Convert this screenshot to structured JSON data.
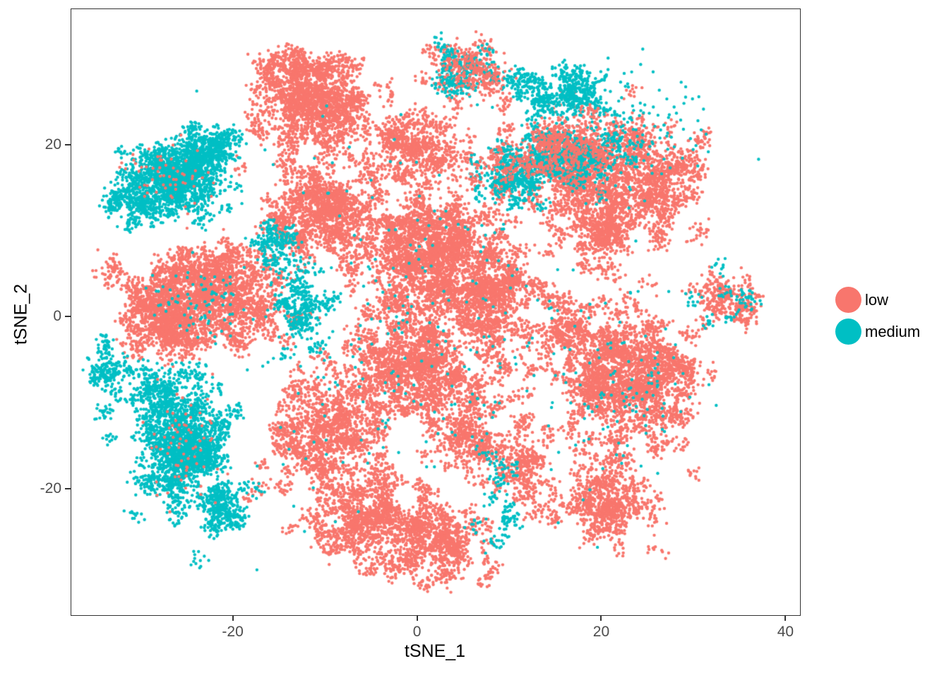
{
  "figure": {
    "background": "#ffffff"
  },
  "axes": {
    "x_title": "tSNE_1",
    "y_title": "tSNE_2"
  },
  "legend": {
    "position": "right",
    "items": [
      {
        "label": "low",
        "group": "low"
      },
      {
        "label": "medium",
        "group": "medium"
      }
    ]
  },
  "chart_data": {
    "type": "scatter",
    "title": "",
    "xlabel": "tSNE_1",
    "ylabel": "tSNE_2",
    "xlim": [
      -37.6,
      41.5
    ],
    "ylim": [
      -34.6,
      35.8
    ],
    "x_ticks": [
      -20,
      0,
      20,
      40
    ],
    "y_ticks": [
      -20,
      0,
      20
    ],
    "grid": false,
    "legend_position": "right",
    "groups": {
      "low": "#F8766D",
      "medium": "#00BFC4"
    },
    "point_radius_px": 2.2,
    "seed": 42,
    "blobs": [
      {
        "g": "low",
        "x": -25.5,
        "y": 2.5,
        "sx": 3.0,
        "sy": 2.2,
        "n": 1700
      },
      {
        "g": "low",
        "x": -27.5,
        "y": -1.5,
        "sx": 2.2,
        "sy": 1.6,
        "n": 700
      },
      {
        "g": "low",
        "x": -18.5,
        "y": 1.0,
        "sx": 2.4,
        "sy": 2.4,
        "n": 900
      },
      {
        "g": "low",
        "x": -22.0,
        "y": 6.0,
        "sx": 2.2,
        "sy": 1.4,
        "n": 500
      },
      {
        "g": "low",
        "x": -33.5,
        "y": 6.2,
        "sx": 1.0,
        "sy": 0.8,
        "n": 70
      },
      {
        "g": "low",
        "x": -11.0,
        "y": 24.5,
        "sx": 3.1,
        "sy": 2.8,
        "n": 2100
      },
      {
        "g": "low",
        "x": -14.5,
        "y": 29.0,
        "sx": 1.8,
        "sy": 1.2,
        "n": 400
      },
      {
        "g": "low",
        "x": -10.5,
        "y": 12.5,
        "sx": 2.9,
        "sy": 2.6,
        "n": 1700
      },
      {
        "g": "low",
        "x": 0.5,
        "y": 19.5,
        "sx": 2.4,
        "sy": 2.2,
        "n": 900
      },
      {
        "g": "low",
        "x": 1.5,
        "y": 6.5,
        "sx": 4.0,
        "sy": 4.0,
        "n": 3400
      },
      {
        "g": "low",
        "x": 8.5,
        "y": 2.0,
        "sx": 3.0,
        "sy": 3.2,
        "n": 1500
      },
      {
        "g": "low",
        "x": -1.5,
        "y": -6.5,
        "sx": 3.8,
        "sy": 2.8,
        "n": 2100
      },
      {
        "g": "low",
        "x": -10.0,
        "y": -14.0,
        "sx": 3.0,
        "sy": 3.0,
        "n": 1700
      },
      {
        "g": "low",
        "x": -4.5,
        "y": -23.5,
        "sx": 3.2,
        "sy": 2.5,
        "n": 1500
      },
      {
        "g": "low",
        "x": 2.5,
        "y": -26.5,
        "sx": 2.4,
        "sy": 2.2,
        "n": 1000
      },
      {
        "g": "low",
        "x": 6.0,
        "y": -13.5,
        "sx": 2.4,
        "sy": 2.6,
        "n": 800
      },
      {
        "g": "low",
        "x": 12.0,
        "y": -17.0,
        "sx": 1.6,
        "sy": 2.2,
        "n": 420
      },
      {
        "g": "low",
        "x": 22.0,
        "y": -7.0,
        "sx": 3.2,
        "sy": 4.2,
        "n": 2300
      },
      {
        "g": "low",
        "x": 27.0,
        "y": -7.0,
        "sx": 1.8,
        "sy": 2.8,
        "n": 700
      },
      {
        "g": "low",
        "x": 20.5,
        "y": -21.5,
        "sx": 2.6,
        "sy": 2.2,
        "n": 950
      },
      {
        "g": "low",
        "x": 17.0,
        "y": -1.0,
        "sx": 1.8,
        "sy": 1.6,
        "n": 420
      },
      {
        "g": "low",
        "x": 18.0,
        "y": 17.0,
        "sx": 4.4,
        "sy": 3.6,
        "n": 2400
      },
      {
        "g": "low",
        "x": 26.5,
        "y": 15.5,
        "sx": 2.4,
        "sy": 2.6,
        "n": 850
      },
      {
        "g": "low",
        "x": 20.0,
        "y": 9.5,
        "sx": 2.6,
        "sy": 1.4,
        "n": 450
      },
      {
        "g": "low",
        "x": 6.0,
        "y": 28.5,
        "sx": 2.3,
        "sy": 1.5,
        "n": 380
      },
      {
        "g": "low",
        "x": 33.5,
        "y": 2.0,
        "sx": 1.9,
        "sy": 1.5,
        "n": 380
      },
      {
        "g": "medium",
        "x": -26.5,
        "y": 16.0,
        "sx": 2.6,
        "sy": 2.0,
        "n": 1900
      },
      {
        "g": "medium",
        "x": -22.5,
        "y": 19.5,
        "sx": 1.6,
        "sy": 1.2,
        "n": 450
      },
      {
        "g": "medium",
        "x": -30.5,
        "y": 13.5,
        "sx": 1.5,
        "sy": 1.3,
        "n": 350
      },
      {
        "g": "medium",
        "x": -25.0,
        "y": -15.5,
        "sx": 2.5,
        "sy": 3.3,
        "n": 2300
      },
      {
        "g": "medium",
        "x": -28.0,
        "y": -8.5,
        "sx": 1.7,
        "sy": 1.5,
        "n": 450
      },
      {
        "g": "medium",
        "x": -33.5,
        "y": -6.0,
        "sx": 1.2,
        "sy": 1.6,
        "n": 280
      },
      {
        "g": "medium",
        "x": -21.0,
        "y": -22.5,
        "sx": 1.3,
        "sy": 1.6,
        "n": 280
      },
      {
        "g": "medium",
        "x": -12.8,
        "y": 1.5,
        "sx": 1.2,
        "sy": 2.2,
        "n": 420
      },
      {
        "g": "medium",
        "x": -15.5,
        "y": 8.5,
        "sx": 1.3,
        "sy": 1.2,
        "n": 220
      },
      {
        "g": "medium",
        "x": 15.5,
        "y": 26.2,
        "sx": 3.0,
        "sy": 1.3,
        "n": 650
      },
      {
        "g": "medium",
        "x": 15.0,
        "y": 18.5,
        "sx": 3.2,
        "sy": 1.6,
        "n": 800
      },
      {
        "g": "medium",
        "x": 10.5,
        "y": 15.5,
        "sx": 1.6,
        "sy": 1.4,
        "n": 300
      },
      {
        "g": "medium",
        "x": 5.0,
        "y": 29.0,
        "sx": 2.0,
        "sy": 1.4,
        "n": 260
      },
      {
        "g": "medium",
        "x": 0.0,
        "y": 0.0,
        "sx": 11.0,
        "sy": 11.0,
        "n": 300,
        "s": true
      },
      {
        "g": "medium",
        "x": 8.8,
        "y": -21.0,
        "sx": 0.8,
        "sy": 3.6,
        "n": 150
      },
      {
        "g": "medium",
        "x": 22.0,
        "y": -8.0,
        "sx": 3.5,
        "sy": 4.5,
        "n": 90,
        "s": true
      },
      {
        "g": "medium",
        "x": 33.5,
        "y": 2.0,
        "sx": 1.9,
        "sy": 1.5,
        "n": 90
      },
      {
        "g": "medium",
        "x": -23.0,
        "y": 1.5,
        "sx": 3.0,
        "sy": 2.2,
        "n": 80,
        "s": true
      },
      {
        "g": "medium",
        "x": 22.0,
        "y": 22.0,
        "sx": 4.5,
        "sy": 3.0,
        "n": 180,
        "s": true
      },
      {
        "g": "low",
        "x": -26.5,
        "y": 16.0,
        "sx": 2.4,
        "sy": 1.9,
        "n": 60,
        "s": true
      },
      {
        "g": "low",
        "x": -25.0,
        "y": -15.0,
        "sx": 2.3,
        "sy": 3.2,
        "n": 70,
        "s": true
      },
      {
        "g": "low",
        "x": 15.0,
        "y": 19.0,
        "sx": 3.2,
        "sy": 2.2,
        "n": 600
      },
      {
        "g": "low",
        "x": 5.5,
        "y": 28.8,
        "sx": 2.0,
        "sy": 1.3,
        "n": 150,
        "s": true
      }
    ]
  }
}
